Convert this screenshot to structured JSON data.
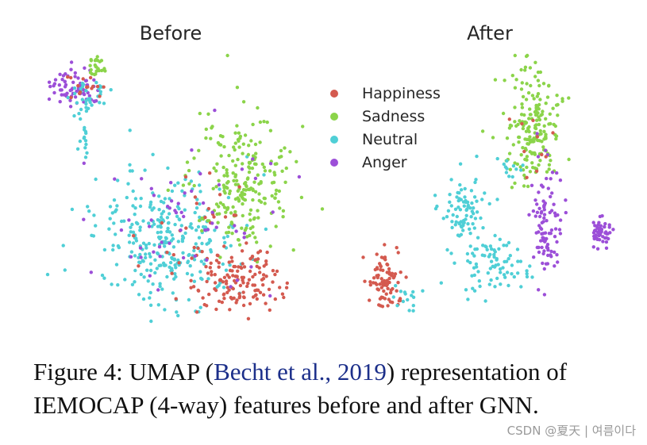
{
  "chart_data": {
    "type": "scatter",
    "method": "UMAP",
    "panels": [
      {
        "title": "Before",
        "clusters": [
          {
            "label": "Anger",
            "n": 70,
            "c": [
              95,
              110
            ],
            "sd": [
              16,
              12
            ]
          },
          {
            "label": "Neutral",
            "n": 35,
            "c": [
              110,
              120
            ],
            "sd": [
              14,
              12
            ]
          },
          {
            "label": "Happiness",
            "n": 15,
            "c": [
              108,
              112
            ],
            "sd": [
              12,
              10
            ]
          },
          {
            "label": "Neutral",
            "n": 12,
            "c": [
              105,
              175
            ],
            "sd": [
              3,
              12
            ]
          },
          {
            "label": "Sadness",
            "n": 25,
            "c": [
              122,
              85
            ],
            "sd": [
              8,
              8
            ]
          },
          {
            "label": "Neutral",
            "n": 310,
            "c": [
              210,
              300
            ],
            "sd": [
              45,
              40
            ]
          },
          {
            "label": "Sadness",
            "n": 230,
            "c": [
              305,
              230
            ],
            "sd": [
              32,
              42
            ]
          },
          {
            "label": "Happiness",
            "n": 140,
            "c": [
              295,
              355
            ],
            "sd": [
              28,
              20
            ]
          },
          {
            "label": "Happiness",
            "n": 30,
            "c": [
              255,
              280
            ],
            "sd": [
              40,
              40
            ]
          },
          {
            "label": "Anger",
            "n": 60,
            "c": [
              240,
              270
            ],
            "sd": [
              60,
              50
            ]
          }
        ]
      },
      {
        "title": "After",
        "clusters": [
          {
            "label": "Sadness",
            "n": 190,
            "c": [
              672,
              160
            ],
            "sd": [
              17,
              34
            ]
          },
          {
            "label": "Anger",
            "n": 95,
            "c": [
              688,
              280
            ],
            "sd": [
              9,
              38
            ]
          },
          {
            "label": "Anger",
            "n": 55,
            "c": [
              756,
              292
            ],
            "sd": [
              7,
              8
            ]
          },
          {
            "label": "Neutral",
            "n": 85,
            "c": [
              585,
              262
            ],
            "sd": [
              14,
              26
            ]
          },
          {
            "label": "Neutral",
            "n": 80,
            "c": [
              622,
              335
            ],
            "sd": [
              22,
              17
            ]
          },
          {
            "label": "Happiness",
            "n": 85,
            "c": [
              483,
              355
            ],
            "sd": [
              10,
              20
            ]
          },
          {
            "label": "Neutral",
            "n": 15,
            "c": [
              510,
              375
            ],
            "sd": [
              8,
              8
            ]
          },
          {
            "label": "Neutral",
            "n": 12,
            "c": [
              640,
              205
            ],
            "sd": [
              10,
              10
            ]
          },
          {
            "label": "Happiness",
            "n": 10,
            "c": [
              665,
              180
            ],
            "sd": [
              12,
              30
            ]
          }
        ]
      }
    ],
    "legend": {
      "placement": "center",
      "entries": [
        {
          "label": "Happiness",
          "color": "#d45a4f"
        },
        {
          "label": "Sadness",
          "color": "#8bd44a"
        },
        {
          "label": "Neutral",
          "color": "#4fcfd6"
        },
        {
          "label": "Anger",
          "color": "#9c4fd8"
        }
      ]
    },
    "xlabel": "",
    "ylabel": ""
  },
  "caption": {
    "prefix": "Figure 4: UMAP (",
    "citation": "Becht et al., 2019",
    "suffix": ") representation of IEMOCAP (4-way) features before and after GNN."
  },
  "watermark": "CSDN @夏天 | 여름이다"
}
